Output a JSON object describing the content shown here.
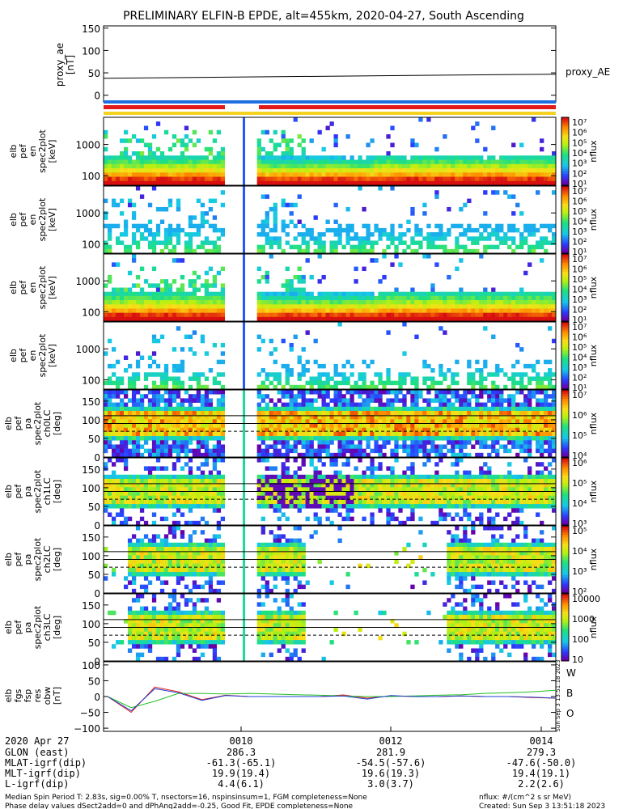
{
  "title": "PRELIMINARY ELFIN-B EPDE, alt=455km, 2020-04-27, South Ascending",
  "proxy_ae": {
    "ylabel": [
      "proxy_ae",
      "[nT]"
    ],
    "legend": "proxy_AE",
    "yticks": [
      "150",
      "100",
      "50",
      "0"
    ],
    "ylim": [
      -15,
      155
    ],
    "x": [
      0,
      1
    ],
    "values": [
      38,
      47
    ]
  },
  "status_bars": {
    "colors": [
      "#1f6fe0",
      "#e21a1a",
      "#f5d21f"
    ]
  },
  "panels": [
    {
      "ylabel": [
        "elb",
        "pef",
        "en",
        "spec2plot",
        "[keV]"
      ],
      "yticks": [
        "1000",
        "100"
      ],
      "cbar_labels": [
        "10⁷",
        "10⁶",
        "10⁵",
        "10⁴",
        "10³",
        "10²",
        "10¹"
      ],
      "cbar_title": "nflux"
    },
    {
      "ylabel": [
        "elb",
        "pef",
        "en",
        "spec2plot",
        "[keV]"
      ],
      "yticks": [
        "1000",
        "100"
      ],
      "cbar_labels": [
        "10⁷",
        "10⁶",
        "10⁵",
        "10⁴",
        "10³",
        "10²",
        "10¹"
      ],
      "cbar_title": "nflux"
    },
    {
      "ylabel": [
        "elb",
        "pef",
        "en",
        "spec2plot",
        "[keV]"
      ],
      "yticks": [
        "1000",
        "100"
      ],
      "cbar_labels": [
        "10⁷",
        "10⁶",
        "10⁵",
        "10⁴",
        "10³",
        "10²",
        "10¹"
      ],
      "cbar_title": "nflux"
    },
    {
      "ylabel": [
        "elb",
        "pef",
        "en",
        "spec2plot",
        "[keV]"
      ],
      "yticks": [
        "1000",
        "100"
      ],
      "cbar_labels": [
        "10⁷",
        "10⁶",
        "10⁵",
        "10⁴",
        "10³",
        "10²",
        "10¹"
      ],
      "cbar_title": "nflux"
    },
    {
      "ylabel": [
        "elb",
        "pef",
        "pa",
        "spec2plot",
        "ch0LC",
        "[deg]"
      ],
      "yticks": [
        "150",
        "100",
        "50",
        "0"
      ],
      "cbar_labels": [
        "10⁷",
        "10⁶",
        "10⁵",
        "10⁴"
      ],
      "cbar_title": "nflux"
    },
    {
      "ylabel": [
        "elb",
        "pef",
        "pa",
        "spec2plot",
        "ch1LC",
        "[deg]"
      ],
      "yticks": [
        "150",
        "100",
        "50",
        "0"
      ],
      "cbar_labels": [
        "10⁶",
        "10⁵",
        "10⁴",
        "10³"
      ],
      "cbar_title": "nflux"
    },
    {
      "ylabel": [
        "elb",
        "pef",
        "pa",
        "spec2plot",
        "ch2LC",
        "[deg]"
      ],
      "yticks": [
        "150",
        "100",
        "50",
        "0"
      ],
      "cbar_labels": [
        "10⁵",
        "10⁴",
        "10³",
        "10²"
      ],
      "cbar_title": "nflux"
    },
    {
      "ylabel": [
        "elb",
        "pef",
        "pa",
        "spec2plot",
        "ch3LC",
        "[deg]"
      ],
      "yticks": [
        "150",
        "100",
        "50",
        "0"
      ],
      "cbar_labels": [
        "10000",
        "1000",
        "100",
        "10"
      ],
      "cbar_title": "nflux"
    }
  ],
  "bfield": {
    "ylabel": [
      "elb",
      "fgs",
      "fsp",
      "res",
      "obw",
      "[nT]"
    ],
    "yticks": [
      "100",
      "50",
      "0",
      "−50",
      "−100"
    ],
    "legend": [
      "W",
      "B",
      "O"
    ],
    "legend_colors": [
      "#e21a1a",
      "#22c022",
      "#1e3cd0"
    ],
    "stamp": "Sun Sep  3 13:51:18 2023"
  },
  "xaxis": {
    "rows": [
      {
        "label": "2020 Apr 27",
        "values": [
          "0010",
          "0012",
          "0014"
        ]
      },
      {
        "label": "GLON (east)",
        "values": [
          "286.3",
          "281.9",
          "279.3"
        ]
      },
      {
        "label": "MLAT-igrf(dip)",
        "values": [
          "-61.3(-65.1)",
          "-54.5(-57.6)",
          "-47.6(-50.0)"
        ]
      },
      {
        "label": "MLT-igrf(dip)",
        "values": [
          "19.9(19.4)",
          "19.6(19.3)",
          "19.4(19.1)"
        ]
      },
      {
        "label": "L-igrf(dip)",
        "values": [
          "4.4(6.1)",
          "3.0(3.7)",
          "2.2(2.6)"
        ]
      }
    ]
  },
  "footer": {
    "line1": "Median Spin Period T: 2.83s, sig=0.00% T, nsectors=16, nspinsinsum=1, FGM completeness=None",
    "line2": "Phase delay values dSect2add=0 and dPhAng2add=-0.25, Good Fit, EPDE completeness=None",
    "right1": "nflux: #/(cm^2 s sr MeV)",
    "right2": "Created: Sun Sep  3 13:51:18 2023"
  },
  "chart_data": [
    {
      "type": "line",
      "title": "PRELIMINARY ELFIN-B EPDE, alt=455km, 2020-04-27, South Ascending",
      "ylabel": "proxy_ae [nT]",
      "series": [
        {
          "name": "proxy_AE",
          "x": [
            "start",
            "end"
          ],
          "values": [
            38,
            47
          ]
        }
      ],
      "ylim": [
        -15,
        155
      ]
    },
    {
      "type": "heatmap",
      "ylabel": "elb pef en spec2plot [keV]",
      "colorbar": "nflux",
      "clim": [
        "10¹",
        "10⁷"
      ]
    },
    {
      "type": "heatmap",
      "ylabel": "elb pef en spec2plot [keV]",
      "colorbar": "nflux",
      "clim": [
        "10¹",
        "10⁷"
      ]
    },
    {
      "type": "heatmap",
      "ylabel": "elb pef en spec2plot [keV]",
      "colorbar": "nflux",
      "clim": [
        "10¹",
        "10⁷"
      ]
    },
    {
      "type": "heatmap",
      "ylabel": "elb pef en spec2plot [keV]",
      "colorbar": "nflux",
      "clim": [
        "10¹",
        "10⁷"
      ]
    },
    {
      "type": "heatmap",
      "ylabel": "elb pef pa spec2plot ch0LC [deg]",
      "colorbar": "nflux",
      "ylim": [
        0,
        180
      ],
      "clim": [
        "10⁴",
        "10⁷"
      ]
    },
    {
      "type": "heatmap",
      "ylabel": "elb pef pa spec2plot ch1LC [deg]",
      "colorbar": "nflux",
      "ylim": [
        0,
        180
      ],
      "clim": [
        "10³",
        "10⁶"
      ]
    },
    {
      "type": "heatmap",
      "ylabel": "elb pef pa spec2plot ch2LC [deg]",
      "colorbar": "nflux",
      "ylim": [
        0,
        180
      ],
      "clim": [
        "10²",
        "10⁵"
      ]
    },
    {
      "type": "heatmap",
      "ylabel": "elb pef pa spec2plot ch3LC [deg]",
      "colorbar": "nflux",
      "ylim": [
        0,
        180
      ],
      "clim": [
        10,
        10000
      ]
    },
    {
      "type": "line",
      "ylabel": "elb fgs fsp res obw [nT]",
      "ylim": [
        -110,
        110
      ],
      "series": [
        {
          "name": "W",
          "values": [
            0,
            -50,
            30,
            15,
            -10,
            4,
            0,
            0,
            0,
            0,
            5,
            -5,
            2,
            0,
            0,
            2,
            0,
            0,
            -3,
            -5
          ]
        },
        {
          "name": "B",
          "values": [
            0,
            -35,
            -15,
            10,
            10,
            8,
            10,
            8,
            6,
            4,
            2,
            0,
            0,
            2,
            4,
            6,
            10,
            12,
            15,
            20
          ]
        },
        {
          "name": "O",
          "values": [
            0,
            -45,
            25,
            12,
            -12,
            3,
            0,
            0,
            0,
            0,
            2,
            -8,
            3,
            0,
            0,
            2,
            0,
            0,
            -2,
            -5
          ]
        }
      ]
    }
  ]
}
